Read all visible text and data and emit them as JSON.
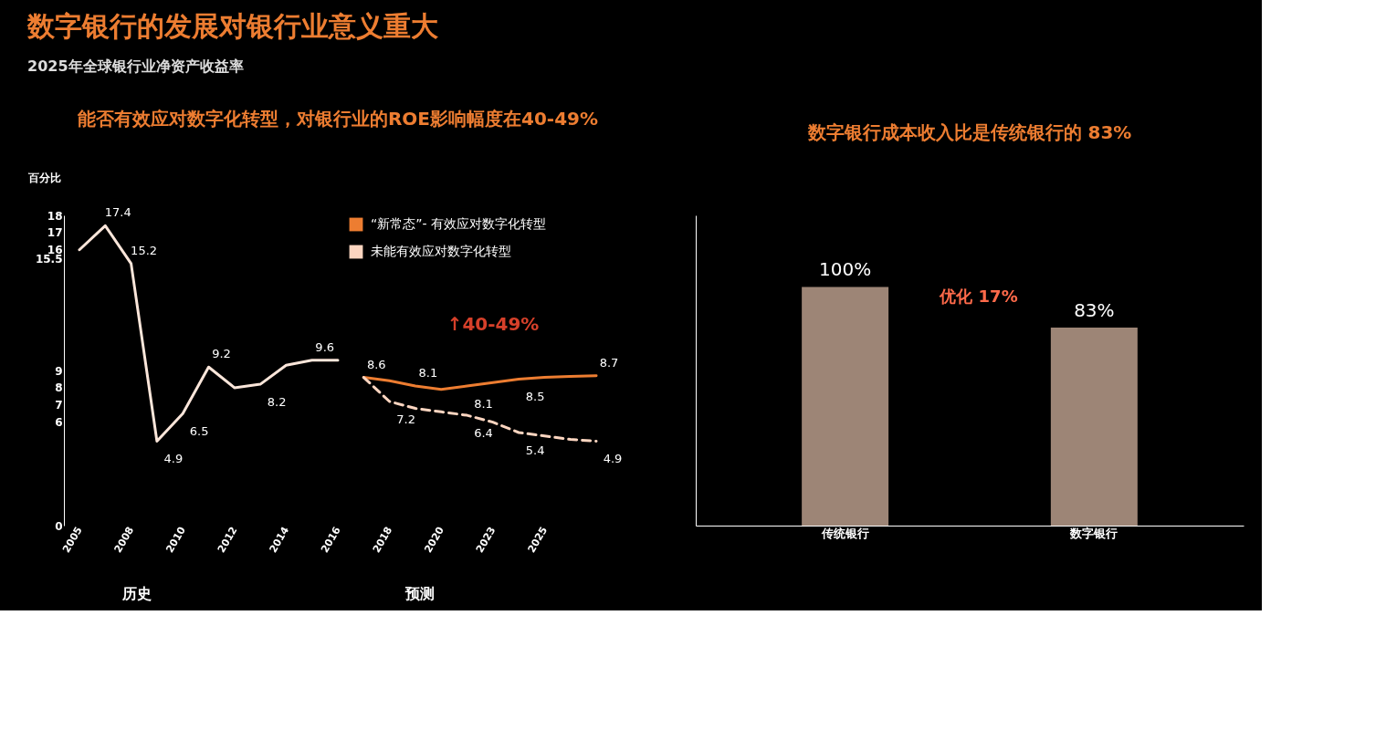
{
  "chart_data": [
    {
      "type": "line",
      "title": "2025年全球银行业净资产收益率",
      "ylabel": "百分比",
      "categories": [
        "2005",
        null,
        "2008",
        null,
        "2010",
        null,
        "2012",
        null,
        "2014",
        null,
        "2016",
        null,
        "2018",
        null,
        "2020",
        null,
        "2023",
        null,
        "2025",
        null,
        null
      ],
      "series": [
        {
          "color": "#fbe6da",
          "line_style": "solid",
          "values": [
            16,
            17.4,
            15.2,
            4.9,
            6.5,
            9.2,
            8.0,
            8.2,
            9.3,
            9.6,
            9.6,
            null,
            null,
            null,
            null,
            null,
            null,
            null,
            null,
            null,
            null
          ],
          "value_labels": [
            null,
            "17.4",
            "15.2",
            "4.9",
            "6.5",
            "9.2",
            null,
            "8.2",
            null,
            "9.6",
            null,
            null,
            null,
            null,
            null,
            null,
            null,
            null,
            null,
            null,
            null
          ]
        },
        {
          "name": "“新常态”- 有效应对数字化转型",
          "color": "#ed7d31",
          "line_style": "solid",
          "values": [
            null,
            null,
            null,
            null,
            null,
            null,
            null,
            null,
            null,
            null,
            null,
            8.6,
            8.4,
            8.1,
            7.9,
            8.1,
            8.3,
            8.5,
            8.6,
            8.65,
            8.7
          ],
          "value_labels": [
            null,
            null,
            null,
            null,
            null,
            null,
            null,
            null,
            null,
            null,
            null,
            "8.6",
            null,
            "8.1",
            null,
            "8.1",
            null,
            "8.5",
            null,
            null,
            "8.7"
          ]
        },
        {
          "name": "未能有效应对数字化转型",
          "color": "#fcd5c0",
          "line_style": "dashed",
          "values": [
            null,
            null,
            null,
            null,
            null,
            null,
            null,
            null,
            null,
            null,
            null,
            8.6,
            7.2,
            6.8,
            6.6,
            6.4,
            6.0,
            5.4,
            5.2,
            5.0,
            4.9
          ],
          "value_labels": [
            null,
            null,
            null,
            null,
            null,
            null,
            null,
            null,
            null,
            null,
            null,
            null,
            "7.2",
            null,
            null,
            "6.4",
            null,
            "5.4",
            null,
            null,
            "4.9"
          ]
        }
      ],
      "ylim": [
        0,
        18
      ],
      "yticks": [
        0,
        6,
        7,
        8,
        9,
        15.5,
        16,
        17,
        18
      ],
      "grid": false,
      "legend": "top right",
      "marker": "none",
      "annotations": [
        "数字银行的发展对银行业意义重大",
        "能否有效应对数字化转型，对银行业的ROE影响幅度在40-49%",
        "历史",
        "预测",
        "↑40-49%"
      ]
    },
    {
      "type": "bar",
      "title": "数字银行成本收入比是传统银行的 83%",
      "categories": [
        "传统银行",
        "数字银行"
      ],
      "values": [
        100,
        83
      ],
      "color": "#9d8576",
      "value_labels": [
        "100%",
        "83%"
      ],
      "tick_labels": "x",
      "grid": false,
      "annotations": [
        "优化 17%"
      ]
    }
  ]
}
